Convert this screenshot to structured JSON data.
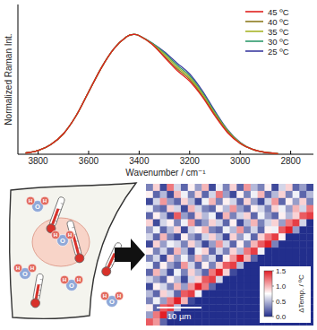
{
  "chart_data": [
    {
      "type": "line",
      "x_label": "Wavenumber / cm⁻¹",
      "y_label": "Normalized Raman Int.",
      "x": [
        3850,
        3800,
        3750,
        3700,
        3650,
        3600,
        3550,
        3500,
        3450,
        3420,
        3400,
        3350,
        3300,
        3250,
        3200,
        3150,
        3100,
        3050,
        3000,
        2950,
        2900,
        2850
      ],
      "series": [
        {
          "name": "45 ºC",
          "color": "#e0211f",
          "values": [
            0.01,
            0.03,
            0.08,
            0.17,
            0.32,
            0.52,
            0.72,
            0.88,
            0.98,
            1.0,
            0.99,
            0.92,
            0.81,
            0.7,
            0.61,
            0.48,
            0.32,
            0.18,
            0.09,
            0.04,
            0.015,
            0.005
          ]
        },
        {
          "name": "40 ºC",
          "color": "#8c7a1e",
          "values": [
            0.01,
            0.03,
            0.08,
            0.17,
            0.32,
            0.52,
            0.72,
            0.88,
            0.98,
            1.0,
            0.99,
            0.92,
            0.82,
            0.715,
            0.625,
            0.49,
            0.33,
            0.19,
            0.09,
            0.04,
            0.015,
            0.005
          ]
        },
        {
          "name": "35 ºC",
          "color": "#a8b428",
          "values": [
            0.01,
            0.03,
            0.08,
            0.17,
            0.32,
            0.52,
            0.72,
            0.88,
            0.98,
            1.0,
            0.99,
            0.925,
            0.835,
            0.73,
            0.64,
            0.505,
            0.34,
            0.195,
            0.095,
            0.04,
            0.015,
            0.005
          ]
        },
        {
          "name": "30 ºC",
          "color": "#2e9a6c",
          "values": [
            0.01,
            0.03,
            0.08,
            0.17,
            0.32,
            0.52,
            0.72,
            0.88,
            0.98,
            1.0,
            0.99,
            0.93,
            0.845,
            0.745,
            0.655,
            0.515,
            0.35,
            0.2,
            0.095,
            0.04,
            0.015,
            0.005
          ]
        },
        {
          "name": "25 ºC",
          "color": "#3c3ca0",
          "values": [
            0.01,
            0.03,
            0.08,
            0.17,
            0.32,
            0.52,
            0.72,
            0.88,
            0.98,
            1.0,
            0.99,
            0.93,
            0.855,
            0.76,
            0.67,
            0.53,
            0.36,
            0.205,
            0.1,
            0.04,
            0.015,
            0.005
          ]
        }
      ],
      "xlim": [
        3880,
        2710
      ],
      "xticks": [
        3800,
        3600,
        3400,
        3200,
        3000,
        2800
      ],
      "ylim": [
        0,
        1.25
      ],
      "tick_labels": "x",
      "legend": "upper right",
      "grid": false
    },
    {
      "type": "heatmap",
      "cells": [
        [
          0.3,
          0.9,
          0.1,
          1.2,
          0.6,
          0.2,
          0.8,
          0.4,
          1.0,
          0.1,
          0.7,
          0.3,
          0.9,
          0.2,
          1.1,
          0.5,
          0.3,
          0.8,
          0.1,
          0.6,
          0.9,
          0.2,
          0.4,
          0.1
        ],
        [
          0.8,
          0.2,
          0.5,
          0.1,
          1.0,
          0.7,
          0.3,
          0.9,
          0.2,
          0.6,
          1.2,
          0.4,
          0.1,
          0.8,
          0.3,
          0.7,
          1.0,
          0.2,
          0.5,
          0.9,
          0.3,
          0.7,
          0.2,
          0.5
        ],
        [
          0.1,
          0.6,
          1.1,
          0.4,
          0.2,
          0.9,
          0.5,
          0.1,
          0.7,
          1.0,
          0.3,
          0.8,
          0.6,
          0.2,
          0.9,
          0.4,
          0.1,
          0.6,
          1.1,
          0.2,
          0.8,
          0.4,
          0.9,
          0.3
        ],
        [
          0.7,
          0.3,
          0.2,
          0.9,
          0.6,
          0.1,
          1.0,
          0.6,
          0.3,
          0.2,
          0.8,
          0.5,
          1.1,
          0.4,
          0.2,
          0.8,
          0.6,
          0.3,
          0.9,
          0.7,
          0.4,
          1.0,
          0.6,
          1.2
        ],
        [
          0.2,
          0.8,
          0.5,
          0.1,
          1.3,
          0.4,
          0.2,
          0.9,
          0.5,
          0.7,
          0.1,
          1.0,
          0.3,
          0.6,
          0.9,
          0.2,
          0.7,
          0.4,
          0.2,
          0.8,
          0.5,
          0.9,
          1.3,
          1.4
        ],
        [
          0.9,
          0.1,
          0.6,
          0.8,
          0.3,
          0.7,
          1.1,
          0.2,
          0.4,
          0.9,
          0.6,
          0.2,
          0.8,
          0.1,
          0.5,
          1.0,
          0.3,
          0.6,
          0.9,
          0.4,
          1.2,
          1.4,
          0.6,
          0
        ],
        [
          0.4,
          0.7,
          0.2,
          0.5,
          0.9,
          0.1,
          0.6,
          0.8,
          1.0,
          0.3,
          0.2,
          0.7,
          0.5,
          1.1,
          0.3,
          0.6,
          0.2,
          0.8,
          0.7,
          1.3,
          1.5,
          0.4,
          0,
          0
        ],
        [
          0.6,
          0.2,
          1.0,
          0.3,
          0.1,
          0.8,
          0.4,
          0.2,
          0.6,
          0.9,
          0.5,
          0.1,
          0.9,
          0.4,
          0.7,
          0.2,
          0.9,
          1.2,
          1.4,
          0.8,
          0,
          0,
          0,
          0
        ],
        [
          0.1,
          0.9,
          0.4,
          0.7,
          0.6,
          0.3,
          0.9,
          0.5,
          0.1,
          0.4,
          1.1,
          0.6,
          0.2,
          0.8,
          0.3,
          1.0,
          1.3,
          1.5,
          0.3,
          0,
          0,
          0,
          0,
          0
        ],
        [
          0.8,
          0.3,
          0.6,
          0.2,
          1.0,
          0.5,
          0.1,
          0.7,
          0.9,
          0.2,
          0.6,
          0.3,
          0.9,
          0.5,
          1.2,
          1.4,
          0.7,
          0,
          0,
          0,
          0,
          0,
          0,
          0
        ],
        [
          0.3,
          0.6,
          0.1,
          0.9,
          0.4,
          0.7,
          0.3,
          1.0,
          0.4,
          0.6,
          0.1,
          0.8,
          1.1,
          1.5,
          1.0,
          0.2,
          0,
          0,
          0,
          0,
          0,
          0,
          0,
          0
        ],
        [
          0.7,
          0.2,
          0.8,
          0.4,
          0.2,
          1.1,
          0.6,
          0.2,
          0.8,
          0.3,
          0.9,
          1.3,
          1.4,
          0.5,
          0,
          0,
          0,
          0,
          0,
          0,
          0,
          0,
          0,
          0
        ],
        [
          0.2,
          1.0,
          0.5,
          0.1,
          0.7,
          0.3,
          0.9,
          0.5,
          0.2,
          1.2,
          1.5,
          0.9,
          0.1,
          0,
          0,
          0,
          0,
          0,
          0,
          0,
          0,
          0,
          0,
          0
        ],
        [
          0.6,
          0.4,
          0.2,
          0.8,
          0.5,
          0.1,
          0.6,
          0.9,
          1.3,
          1.4,
          0.6,
          0,
          0,
          0,
          0,
          0,
          0,
          0,
          0,
          0,
          0,
          0,
          0,
          0
        ],
        [
          0.1,
          0.8,
          0.6,
          0.3,
          1.0,
          0.4,
          1.1,
          1.5,
          1.2,
          0.2,
          0,
          0,
          0,
          0,
          0,
          0,
          0,
          0,
          0,
          0,
          0,
          0,
          0,
          0
        ],
        [
          0.5,
          0.2,
          0.9,
          0.6,
          0.2,
          1.3,
          1.4,
          0.7,
          0,
          0,
          0,
          0,
          0,
          0,
          0,
          0,
          0,
          0,
          0,
          0,
          0,
          0,
          0,
          0
        ],
        [
          0.3,
          0.7,
          0.4,
          1.2,
          1.5,
          1.0,
          0.1,
          0,
          0,
          0,
          0,
          0,
          0,
          0,
          0,
          0,
          0,
          0,
          0,
          0,
          0,
          0,
          0,
          0
        ],
        [
          0.8,
          0.2,
          1.3,
          1.4,
          0.5,
          0,
          0,
          0,
          0,
          0,
          0,
          0,
          0,
          0,
          0,
          0,
          0,
          0,
          0,
          0,
          0,
          0,
          0,
          0
        ],
        [
          0.4,
          1.2,
          1.5,
          0.3,
          0,
          0,
          0,
          0,
          0,
          0,
          0,
          0,
          0,
          0,
          0,
          0,
          0,
          0,
          0,
          0,
          0,
          0,
          0,
          0
        ],
        [
          1.3,
          1.1,
          0.2,
          0,
          0,
          0,
          0,
          0,
          0,
          0,
          0,
          0,
          0,
          0,
          0,
          0,
          0,
          0,
          0,
          0,
          0,
          0,
          0,
          0
        ]
      ],
      "colorbar": {
        "range": [
          0,
          1.5
        ],
        "ticks": [
          {
            "value": 0,
            "label": "0.0"
          },
          {
            "value": 0.5,
            "label": "0.5"
          },
          {
            "value": 1,
            "label": "1.0"
          },
          {
            "value": 1.5,
            "label": "1.5"
          }
        ],
        "label": "ΔTemp. / ºC"
      },
      "scale_bar_label": "10 µm"
    }
  ],
  "diagram": {
    "molecules": [
      {
        "atoms": [
          "O",
          "H",
          "H"
        ]
      },
      {
        "atoms": [
          "O",
          "H",
          "H"
        ]
      },
      {
        "atoms": [
          "O",
          "H",
          "H"
        ]
      },
      {
        "atoms": [
          "O",
          "H",
          "H"
        ]
      },
      {
        "atoms": [
          "O",
          "H",
          "H"
        ]
      }
    ]
  }
}
